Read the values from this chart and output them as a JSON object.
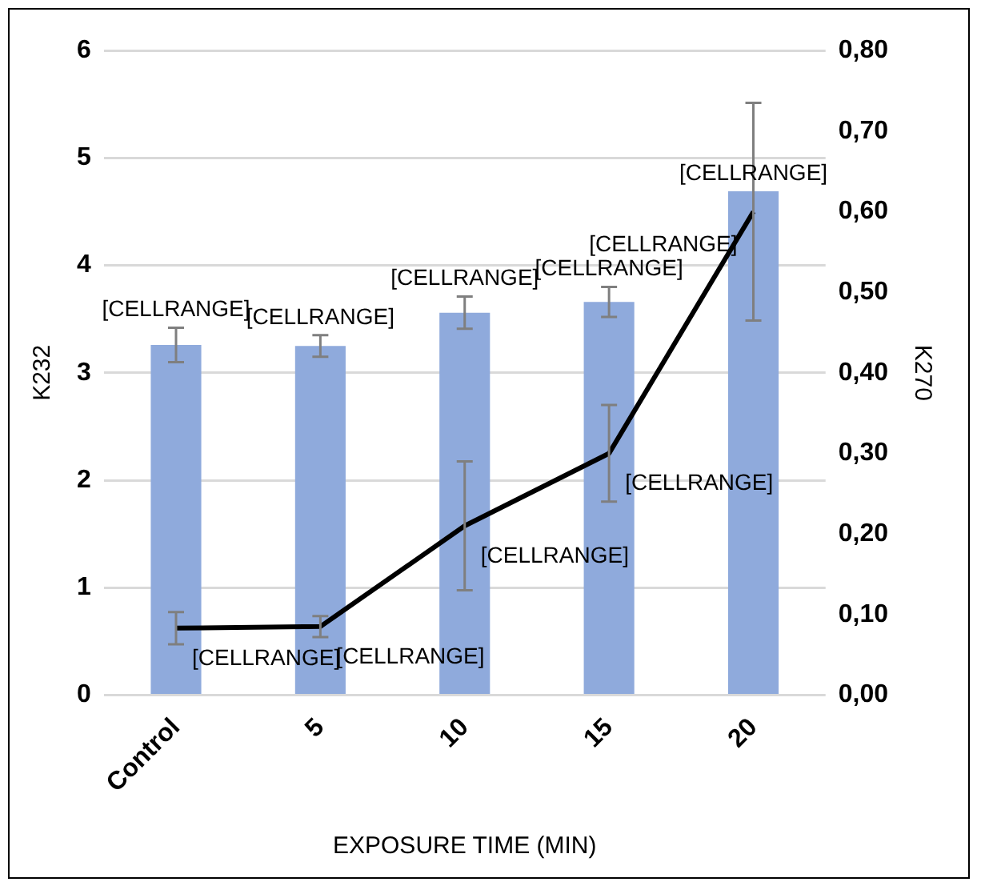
{
  "chart_data": {
    "type": "bar",
    "xlabel": "EXPOSURE TIME (MIN)",
    "ylabel": "K232",
    "y2label": "K270",
    "categories": [
      "Control",
      "5",
      "10",
      "15",
      "20"
    ],
    "series": [
      {
        "color": "#8faadc",
        "values": [
          3.26,
          3.25,
          3.56,
          3.66,
          4.69
        ],
        "errors": [
          0.16,
          0.1,
          0.15,
          0.14,
          null
        ],
        "value_labels": [
          "[CELLRANGE]",
          "[CELLRANGE]",
          "[CELLRANGE]",
          "[CELLRANGE]",
          "[CELLRANGE]"
        ]
      },
      {
        "type": "line",
        "axis": "y2",
        "color": "#000000",
        "values": [
          0.083,
          0.085,
          0.21,
          0.3,
          0.6
        ],
        "errors": [
          0.02,
          0.013,
          0.08,
          0.06,
          0.135
        ],
        "value_labels": [
          "[CELLRANGE]",
          "[CELLRANGE]",
          "[CELLRANGE]",
          "[CELLRANGE]",
          "[CELLRANGE]"
        ]
      }
    ],
    "ylim": [
      0,
      6
    ],
    "yticks": [
      0,
      1,
      2,
      3,
      4,
      5,
      6
    ],
    "y2lim": [
      0,
      0.8
    ],
    "y2ticks": [
      {
        "value": 0,
        "label": "0,00"
      },
      {
        "value": 0.1,
        "label": "0,10"
      },
      {
        "value": 0.2,
        "label": "0,20"
      },
      {
        "value": 0.3,
        "label": "0,30"
      },
      {
        "value": 0.4,
        "label": "0,40"
      },
      {
        "value": 0.5,
        "label": "0,50"
      },
      {
        "value": 0.6,
        "label": "0,60"
      },
      {
        "value": 0.7,
        "label": "0,70"
      },
      {
        "value": 0.8,
        "label": "0,80"
      }
    ],
    "grid": "y",
    "legend": false,
    "marker": "none",
    "line_style": "solid"
  }
}
